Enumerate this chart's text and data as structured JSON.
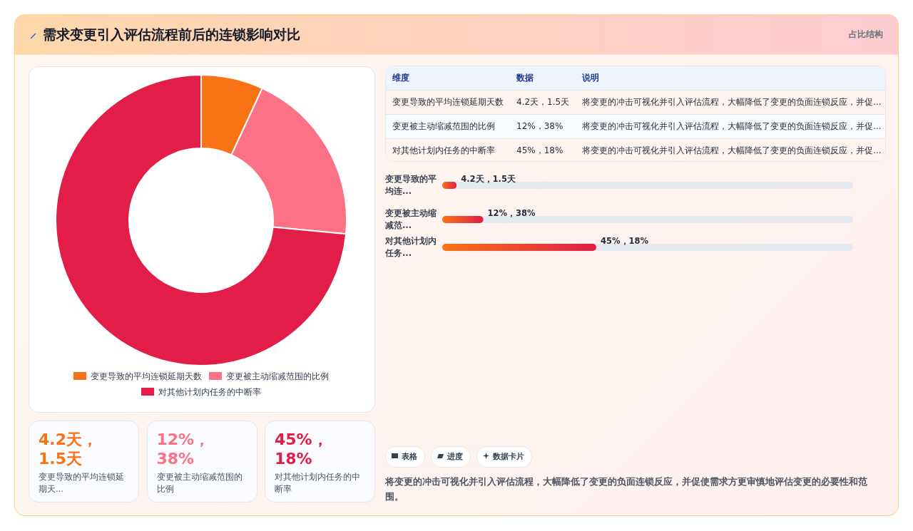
{
  "chart_data": [
    {
      "type": "other",
      "title": "需求变更引入评估流程前后的连锁影响对比",
      "subtitle": "占比结构"
    },
    {
      "type": "donut",
      "categories": [
        "变更导致的平均连锁延期天数",
        "变更被主动缩减范围的比例",
        "对其他计划内任务的中断率"
      ],
      "values": [
        6.9,
        19.6,
        73.5
      ],
      "colors": [
        "#f97316",
        "#fb7185",
        "#e11d48"
      ],
      "legend": "bottom"
    },
    {
      "type": "other",
      "annotations": [
        "维度",
        "数据",
        "说明",
        "变更导致的平均连锁延期天数",
        "4.2天，1.5天",
        "将变更的冲击可视化并引入评估流程，大幅降低了变更的负面连锁反应，并促...",
        "变更被主动缩减范围的比例",
        "12%，38%",
        "将变更的冲击可视化并引入评估流程，大幅降低了变更的负面连锁反应，并促...",
        "对其他计划内任务的中断率",
        "45%，18%",
        "将变更的冲击可视化并引入评估流程，大幅降低了变更的负面连锁反应，并促..."
      ]
    },
    {
      "type": "bar",
      "orientation": "horizontal",
      "categories": [
        "变更导致的平均连...",
        "变更被主动缩减范...",
        "对其他计划内任务..."
      ],
      "values": [
        4.2,
        12,
        45
      ],
      "xlim": [
        0,
        120
      ],
      "value_labels": [
        "4.2天，1.5天",
        "12%，38%",
        "45%，18%"
      ],
      "color": "#e11d48"
    },
    {
      "type": "other",
      "annotations": [
        "4.2天，1.5天",
        "变更导致的平均连锁延期天...",
        "12%，38%",
        "变更被主动缩减范围的比例",
        "45%，18%",
        "对其他计划内任务的中断率"
      ]
    },
    {
      "type": "other",
      "annotations": [
        "表格",
        "进度",
        "数据卡片",
        "将变更的冲击可视化并引入评估流程，大幅降低了变更的负面连锁反应，并促使需求方更审慎地评估变更的必要性和范围。"
      ]
    }
  ]
}
